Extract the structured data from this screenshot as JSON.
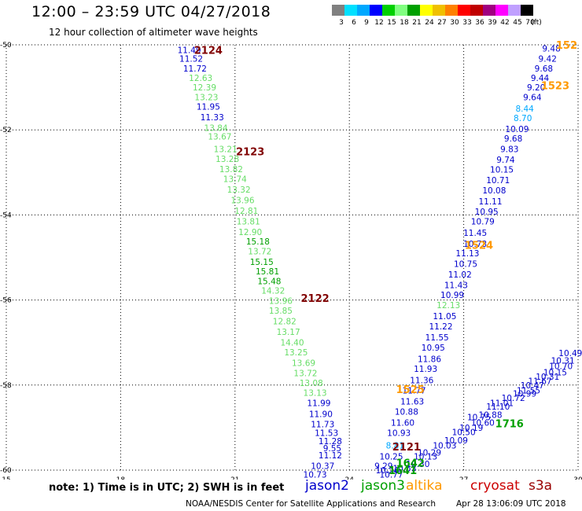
{
  "title": "12:00 – 23:59 UTC 04/27/2018",
  "subtitle": "12 hour collection of altimeter wave heights",
  "colorbar": {
    "unit": "(ft)",
    "thresholds": [
      "3",
      "6",
      "9",
      "12",
      "15",
      "18",
      "21",
      "24",
      "27",
      "30",
      "33",
      "36",
      "39",
      "42",
      "45",
      "70"
    ],
    "colors": [
      "#808080",
      "#00e0ff",
      "#00a8ff",
      "#0000ff",
      "#00d000",
      "#80ff80",
      "#00a000",
      "#ffff00",
      "#f0c000",
      "#ff8000",
      "#ff0000",
      "#c00000",
      "#a00080",
      "#ff00ff",
      "#c0a0ff",
      "#000000"
    ]
  },
  "legend": {
    "note": "note:  1) Time is in UTC;  2) SWH is in feet",
    "satellites": [
      {
        "name": "jason2",
        "color": "#0000cc"
      },
      {
        "name": "jason3",
        "color": "#00a000"
      },
      {
        "name": "altika",
        "color": "#ff9900"
      },
      {
        "name": "cryosat",
        "color": "#cc0000"
      },
      {
        "name": "s3a",
        "color": "#990000"
      }
    ]
  },
  "credit": "NOAA/NESDIS Center for Satellite Applications and Research",
  "stamp": "Apr 28 13:06:09 UTC 2018",
  "chart_data": {
    "type": "scatter",
    "title": "12:00 – 23:59 UTC 04/27/2018",
    "xlabel": "",
    "ylabel": "",
    "xlim": [
      15,
      30
    ],
    "ylim": [
      -60,
      -50
    ],
    "xticks": [
      15,
      18,
      21,
      24,
      27,
      30
    ],
    "yticks": [
      -60,
      -58,
      -56,
      -54,
      -52,
      -50
    ],
    "grid": true,
    "pass_labels": [
      {
        "text": "2124",
        "x": 20.3,
        "y": -50.12,
        "color": "#800000"
      },
      {
        "text": "2123",
        "x": 21.4,
        "y": -52.5,
        "color": "#800000"
      },
      {
        "text": "2122",
        "x": 23.1,
        "y": -55.95,
        "color": "#800000"
      },
      {
        "text": "2121",
        "x": 25.5,
        "y": -59.45,
        "color": "#800000"
      },
      {
        "text": "1523",
        "x": 29.4,
        "y": -50.95,
        "color": "#ff9900"
      },
      {
        "text": "1524",
        "x": 27.4,
        "y": -54.7,
        "color": "#ff9900"
      },
      {
        "text": "1525",
        "x": 25.6,
        "y": -58.1,
        "color": "#ff9900"
      },
      {
        "text": "152",
        "x": 29.7,
        "y": -50.0,
        "color": "#ff9900"
      },
      {
        "text": "1716",
        "x": 28.2,
        "y": -58.9,
        "color": "#00a000"
      },
      {
        "text": "1642",
        "x": 25.6,
        "y": -59.82,
        "color": "#00a000"
      },
      {
        "text": "1641",
        "x": 25.4,
        "y": -60.0,
        "color": "#00a000"
      }
    ],
    "series": [
      {
        "name": "2124",
        "points": [
          {
            "x": 19.8,
            "y": -50.12,
            "v": "11.49",
            "c": "#0000cc"
          },
          {
            "x": 19.85,
            "y": -50.32,
            "v": "11.52",
            "c": "#0000cc"
          },
          {
            "x": 19.95,
            "y": -50.55,
            "v": "11.72",
            "c": "#0000cc"
          },
          {
            "x": 20.1,
            "y": -50.78,
            "v": "12.63",
            "c": "#66dd66"
          },
          {
            "x": 20.2,
            "y": -51.0,
            "v": "12.39",
            "c": "#66dd66"
          },
          {
            "x": 20.25,
            "y": -51.23,
            "v": "13.23",
            "c": "#66dd66"
          },
          {
            "x": 20.3,
            "y": -51.45,
            "v": "11.95",
            "c": "#0000cc"
          },
          {
            "x": 20.4,
            "y": -51.7,
            "v": "11.33",
            "c": "#0000cc"
          },
          {
            "x": 20.5,
            "y": -51.95,
            "v": "13.84",
            "c": "#66dd66"
          },
          {
            "x": 20.6,
            "y": -52.15,
            "v": "13.67",
            "c": "#66dd66"
          },
          {
            "x": 20.75,
            "y": -52.45,
            "v": "13.21",
            "c": "#66dd66"
          },
          {
            "x": 20.8,
            "y": -52.68,
            "v": "13.28",
            "c": "#66dd66"
          },
          {
            "x": 20.9,
            "y": -52.92,
            "v": "13.82",
            "c": "#66dd66"
          },
          {
            "x": 21.0,
            "y": -53.15,
            "v": "13.74",
            "c": "#66dd66"
          },
          {
            "x": 21.1,
            "y": -53.4,
            "v": "13.32",
            "c": "#66dd66"
          },
          {
            "x": 21.2,
            "y": -53.65,
            "v": "13.96",
            "c": "#66dd66"
          },
          {
            "x": 21.3,
            "y": -53.9,
            "v": "12.81",
            "c": "#66dd66"
          },
          {
            "x": 21.35,
            "y": -54.15,
            "v": "13.81",
            "c": "#66dd66"
          },
          {
            "x": 21.4,
            "y": -54.4,
            "v": "12.90",
            "c": "#66dd66"
          },
          {
            "x": 21.6,
            "y": -54.62,
            "v": "15.18",
            "c": "#00a000"
          },
          {
            "x": 21.65,
            "y": -54.85,
            "v": "13.72",
            "c": "#66dd66"
          },
          {
            "x": 21.7,
            "y": -55.1,
            "v": "15.15",
            "c": "#00a000"
          },
          {
            "x": 21.85,
            "y": -55.32,
            "v": "15.81",
            "c": "#00a000"
          },
          {
            "x": 21.9,
            "y": -55.55,
            "v": "15.48",
            "c": "#00a000"
          },
          {
            "x": 22.0,
            "y": -55.78,
            "v": "14.32",
            "c": "#66dd66"
          },
          {
            "x": 22.2,
            "y": -56.02,
            "v": "13.96",
            "c": "#66dd66"
          },
          {
            "x": 22.2,
            "y": -56.25,
            "v": "13.85",
            "c": "#66dd66"
          },
          {
            "x": 22.3,
            "y": -56.5,
            "v": "12.82",
            "c": "#66dd66"
          },
          {
            "x": 22.4,
            "y": -56.75,
            "v": "13.17",
            "c": "#66dd66"
          },
          {
            "x": 22.5,
            "y": -57.0,
            "v": "14.40",
            "c": "#66dd66"
          },
          {
            "x": 22.6,
            "y": -57.23,
            "v": "13.25",
            "c": "#66dd66"
          },
          {
            "x": 22.8,
            "y": -57.48,
            "v": "13.69",
            "c": "#66dd66"
          },
          {
            "x": 22.85,
            "y": -57.72,
            "v": "13.72",
            "c": "#66dd66"
          },
          {
            "x": 23.0,
            "y": -57.95,
            "v": "13.08",
            "c": "#66dd66"
          },
          {
            "x": 23.1,
            "y": -58.18,
            "v": "13.13",
            "c": "#66dd66"
          },
          {
            "x": 23.2,
            "y": -58.42,
            "v": "11.99",
            "c": "#0000cc"
          },
          {
            "x": 23.25,
            "y": -58.68,
            "v": "11.90",
            "c": "#0000cc"
          },
          {
            "x": 23.3,
            "y": -58.92,
            "v": "11.73",
            "c": "#0000cc"
          },
          {
            "x": 23.4,
            "y": -59.12,
            "v": "11.53",
            "c": "#0000cc"
          },
          {
            "x": 23.5,
            "y": -59.32,
            "v": "11.28",
            "c": "#0000cc"
          },
          {
            "x": 23.55,
            "y": -59.48,
            "v": "9.55",
            "c": "#0000cc"
          },
          {
            "x": 23.5,
            "y": -59.65,
            "v": "11.12",
            "c": "#0000cc"
          },
          {
            "x": 23.3,
            "y": -59.9,
            "v": "10.37",
            "c": "#0000cc"
          },
          {
            "x": 23.1,
            "y": -60.1,
            "v": "10.73",
            "c": "#0000cc"
          }
        ]
      },
      {
        "name": "1525",
        "points": [
          {
            "x": 29.3,
            "y": -50.08,
            "v": "9.48",
            "c": "#0000cc"
          },
          {
            "x": 29.2,
            "y": -50.32,
            "v": "9.42",
            "c": "#0000cc"
          },
          {
            "x": 29.1,
            "y": -50.55,
            "v": "9.68",
            "c": "#0000cc"
          },
          {
            "x": 29.0,
            "y": -50.78,
            "v": "9.44",
            "c": "#0000cc"
          },
          {
            "x": 28.9,
            "y": -51.0,
            "v": "9.20",
            "c": "#0000cc"
          },
          {
            "x": 28.8,
            "y": -51.23,
            "v": "9.64",
            "c": "#0000cc"
          },
          {
            "x": 28.6,
            "y": -51.5,
            "v": "8.44",
            "c": "#00a8ff"
          },
          {
            "x": 28.55,
            "y": -51.72,
            "v": "8.70",
            "c": "#00a8ff"
          },
          {
            "x": 28.4,
            "y": -51.98,
            "v": "10.09",
            "c": "#0000cc"
          },
          {
            "x": 28.3,
            "y": -52.2,
            "v": "9.68",
            "c": "#0000cc"
          },
          {
            "x": 28.2,
            "y": -52.45,
            "v": "9.83",
            "c": "#0000cc"
          },
          {
            "x": 28.1,
            "y": -52.7,
            "v": "9.74",
            "c": "#0000cc"
          },
          {
            "x": 28.0,
            "y": -52.93,
            "v": "10.15",
            "c": "#0000cc"
          },
          {
            "x": 27.9,
            "y": -53.18,
            "v": "10.71",
            "c": "#0000cc"
          },
          {
            "x": 27.8,
            "y": -53.42,
            "v": "10.08",
            "c": "#0000cc"
          },
          {
            "x": 27.7,
            "y": -53.68,
            "v": "11.11",
            "c": "#0000cc"
          },
          {
            "x": 27.6,
            "y": -53.92,
            "v": "10.95",
            "c": "#0000cc"
          },
          {
            "x": 27.5,
            "y": -54.15,
            "v": "10.79",
            "c": "#0000cc"
          },
          {
            "x": 27.3,
            "y": -54.42,
            "v": "11.45",
            "c": "#0000cc"
          },
          {
            "x": 27.3,
            "y": -54.68,
            "v": "10.73",
            "c": "#0000cc"
          },
          {
            "x": 27.1,
            "y": -54.9,
            "v": "11.13",
            "c": "#0000cc"
          },
          {
            "x": 27.05,
            "y": -55.15,
            "v": "10.75",
            "c": "#0000cc"
          },
          {
            "x": 26.9,
            "y": -55.4,
            "v": "11.02",
            "c": "#0000cc"
          },
          {
            "x": 26.8,
            "y": -55.65,
            "v": "11.43",
            "c": "#0000cc"
          },
          {
            "x": 26.7,
            "y": -55.88,
            "v": "10.99",
            "c": "#0000cc"
          },
          {
            "x": 26.6,
            "y": -56.12,
            "v": "12.13",
            "c": "#66dd66"
          },
          {
            "x": 26.5,
            "y": -56.38,
            "v": "11.05",
            "c": "#0000cc"
          },
          {
            "x": 26.4,
            "y": -56.62,
            "v": "11.22",
            "c": "#0000cc"
          },
          {
            "x": 26.3,
            "y": -56.88,
            "v": "11.55",
            "c": "#0000cc"
          },
          {
            "x": 26.2,
            "y": -57.12,
            "v": "10.95",
            "c": "#0000cc"
          },
          {
            "x": 26.1,
            "y": -57.38,
            "v": "11.86",
            "c": "#0000cc"
          },
          {
            "x": 26.0,
            "y": -57.62,
            "v": "11.93",
            "c": "#0000cc"
          },
          {
            "x": 25.9,
            "y": -57.88,
            "v": "11.36",
            "c": "#0000cc"
          },
          {
            "x": 25.7,
            "y": -58.12,
            "v": "11.77",
            "c": "#0000cc"
          },
          {
            "x": 25.65,
            "y": -58.38,
            "v": "11.63",
            "c": "#0000cc"
          },
          {
            "x": 25.5,
            "y": -58.62,
            "v": "10.88",
            "c": "#0000cc"
          },
          {
            "x": 25.4,
            "y": -58.88,
            "v": "11.60",
            "c": "#0000cc"
          },
          {
            "x": 25.3,
            "y": -59.12,
            "v": "10.93",
            "c": "#0000cc"
          },
          {
            "x": 25.2,
            "y": -59.42,
            "v": "8.81",
            "c": "#00a8ff"
          },
          {
            "x": 25.1,
            "y": -59.68,
            "v": "10.25",
            "c": "#0000cc"
          }
        ]
      },
      {
        "name": "bottom",
        "points": [
          {
            "x": 24.9,
            "y": -59.9,
            "v": "9.29",
            "c": "#0000cc"
          },
          {
            "x": 25.0,
            "y": -60.0,
            "v": "10.26",
            "c": "#0000cc"
          },
          {
            "x": 25.1,
            "y": -60.1,
            "v": "10.77",
            "c": "#0000cc"
          },
          {
            "x": 25.45,
            "y": -59.95,
            "v": "10.53",
            "c": "#0000cc"
          },
          {
            "x": 25.8,
            "y": -59.85,
            "v": "10.30",
            "c": "#0000cc"
          },
          {
            "x": 26.0,
            "y": -59.68,
            "v": "10.13",
            "c": "#0000cc"
          },
          {
            "x": 26.1,
            "y": -59.58,
            "v": "10.29",
            "c": "#0000cc"
          },
          {
            "x": 26.5,
            "y": -59.42,
            "v": "10.03",
            "c": "#0000cc"
          },
          {
            "x": 26.8,
            "y": -59.3,
            "v": "10.09",
            "c": "#0000cc"
          },
          {
            "x": 27.0,
            "y": -59.1,
            "v": "10.50",
            "c": "#0000cc"
          },
          {
            "x": 27.2,
            "y": -59.0,
            "v": "10.19",
            "c": "#0000cc"
          },
          {
            "x": 27.5,
            "y": -58.88,
            "v": "10.60",
            "c": "#0000cc"
          },
          {
            "x": 27.4,
            "y": -58.75,
            "v": "10.75",
            "c": "#0000cc"
          },
          {
            "x": 27.7,
            "y": -58.7,
            "v": "10.88",
            "c": "#0000cc"
          },
          {
            "x": 27.9,
            "y": -58.5,
            "v": "11.10",
            "c": "#0000cc"
          },
          {
            "x": 28.0,
            "y": -58.42,
            "v": "11.01",
            "c": "#0000cc"
          },
          {
            "x": 28.3,
            "y": -58.3,
            "v": "10.72",
            "c": "#0000cc"
          },
          {
            "x": 28.6,
            "y": -58.2,
            "v": "10.99",
            "c": "#0000cc"
          },
          {
            "x": 28.7,
            "y": -58.12,
            "v": "11.55",
            "c": "#0000cc"
          },
          {
            "x": 28.8,
            "y": -58.0,
            "v": "10.47",
            "c": "#0000cc"
          },
          {
            "x": 29.0,
            "y": -57.9,
            "v": "11.67",
            "c": "#0000cc"
          },
          {
            "x": 29.2,
            "y": -57.8,
            "v": "10.31",
            "c": "#0000cc"
          },
          {
            "x": 29.4,
            "y": -57.7,
            "v": "10.15",
            "c": "#0000cc"
          },
          {
            "x": 29.55,
            "y": -57.55,
            "v": "10.70",
            "c": "#0000cc"
          },
          {
            "x": 29.6,
            "y": -57.42,
            "v": "10.31",
            "c": "#0000cc"
          },
          {
            "x": 29.8,
            "y": -57.25,
            "v": "10.49",
            "c": "#0000cc"
          }
        ]
      }
    ]
  }
}
